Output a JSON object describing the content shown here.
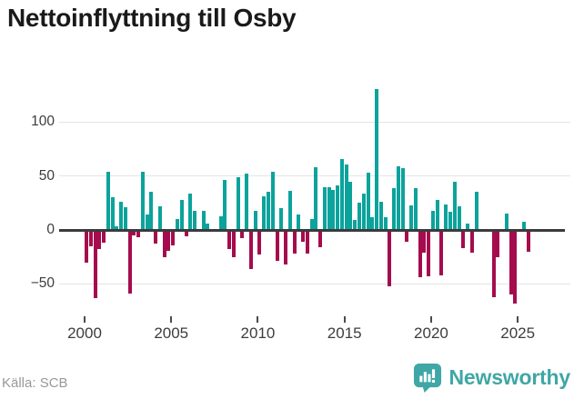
{
  "title": "Nettoinflyttning till Osby",
  "footer": {
    "source": "Källa: SCB",
    "brand": "Newsworthy"
  },
  "colors": {
    "positive": "#0ba39c",
    "negative": "#a50c4d",
    "brand_teal": "#3fa7a5",
    "zero_line": "#3b3b3b",
    "gridline": "#e4e4e4",
    "axis_text": "#3d3d3d",
    "source_text": "#999999",
    "title_text": "#1a1a1a"
  },
  "chart_data": {
    "type": "bar",
    "title": "Nettoinflyttning till Osby",
    "x_unit": "quarter",
    "start_year": 2000,
    "start_quarter": 1,
    "values": [
      -30,
      -15,
      -63,
      -18,
      -12,
      54,
      30,
      3,
      26,
      21,
      -59,
      -5,
      -7,
      54,
      14,
      35,
      -13,
      22,
      -25,
      -19,
      -14,
      10,
      28,
      -6,
      34,
      18,
      -2,
      18,
      6,
      0,
      0,
      13,
      46,
      -18,
      -25,
      49,
      -8,
      52,
      -36,
      18,
      -23,
      31,
      35,
      54,
      -29,
      20,
      -32,
      36,
      -22,
      14,
      -11,
      -22,
      10,
      58,
      -16,
      40,
      40,
      37,
      41,
      66,
      61,
      45,
      9,
      25,
      34,
      53,
      12,
      131,
      26,
      12,
      -52,
      39,
      59,
      57,
      -11,
      23,
      39,
      -44,
      -21,
      -43,
      18,
      28,
      -42,
      24,
      17,
      45,
      22,
      -17,
      6,
      -21,
      35,
      -2,
      0,
      0,
      -62,
      -25,
      0,
      15,
      -60,
      -68,
      0,
      8,
      -20
    ],
    "x_tick_years": [
      2000,
      2005,
      2010,
      2015,
      2020,
      2025
    ],
    "x_tick_labels": [
      "2000",
      "2005",
      "2010",
      "2015",
      "2020",
      "2025"
    ],
    "y_tick_values": [
      100,
      50,
      0,
      -50
    ],
    "y_tick_labels": [
      "100",
      "50",
      "0",
      "−50"
    ],
    "ylim": [
      -75,
      140
    ],
    "grid": "horizontal",
    "legend": "none"
  }
}
